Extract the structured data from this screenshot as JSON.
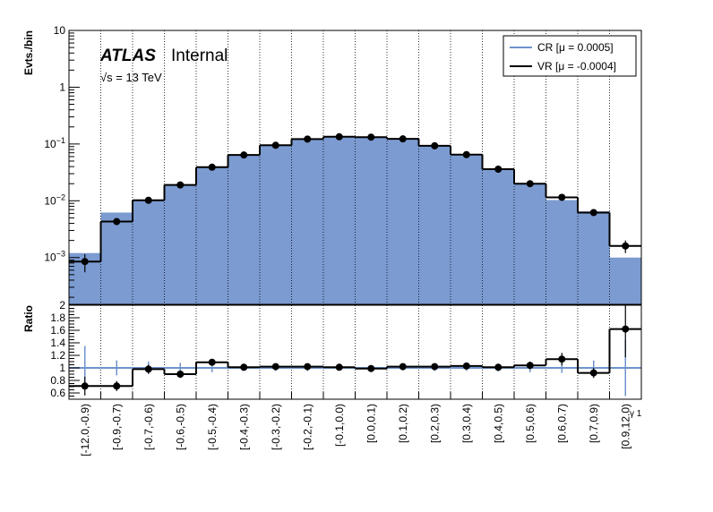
{
  "chart_data": {
    "type": "bar",
    "categories": [
      "[-12.0,-0.9)",
      "[-0.9,-0.7)",
      "[-0.7,-0.6)",
      "[-0.6,-0.5)",
      "[-0.5,-0.4)",
      "[-0.4,-0.3)",
      "[-0.3,-0.2)",
      "[-0.2,-0.1)",
      "[-0.1,0.0)",
      "[0.0,0.1)",
      "[0.1,0.2)",
      "[0.2,0.3)",
      "[0.3,0.4)",
      "[0.4,0.5)",
      "[0.5,0.6)",
      "[0.6,0.7)",
      "[0.7,0.9)",
      "[0.9,12.0)"
    ],
    "x_title": "γ 1",
    "upper": {
      "ylabel": "Evts./bin",
      "yscale": "log",
      "ylim": [
        0.00015,
        10
      ],
      "y_ticks": [
        {
          "value": 10,
          "label": "10"
        },
        {
          "value": 1,
          "label": "1"
        },
        {
          "value": 0.1,
          "base": "10",
          "exp": "−1"
        },
        {
          "value": 0.01,
          "base": "10",
          "exp": "−2"
        },
        {
          "value": 0.001,
          "base": "10",
          "exp": "−3"
        }
      ],
      "series": [
        {
          "name": "CR [μ = 0.0005]",
          "style": "filled-histogram",
          "color": "#7b9bd1",
          "values": [
            0.0012,
            0.0062,
            0.0105,
            0.019,
            0.038,
            0.063,
            0.094,
            0.12,
            0.132,
            0.133,
            0.121,
            0.092,
            0.063,
            0.036,
            0.0195,
            0.0103,
            0.0065,
            0.001
          ]
        },
        {
          "name": "VR [μ = -0.0004]",
          "style": "points-with-step",
          "color": "#000000",
          "values": [
            0.00085,
            0.0043,
            0.0102,
            0.019,
            0.039,
            0.064,
            0.095,
            0.122,
            0.134,
            0.132,
            0.123,
            0.093,
            0.065,
            0.036,
            0.02,
            0.0115,
            0.0062,
            0.0016
          ],
          "errors_low": [
            0.0003,
            0.0005,
            0.0007,
            0.0012,
            0.002,
            0.003,
            0.003,
            0.004,
            0.004,
            0.004,
            0.004,
            0.003,
            0.003,
            0.002,
            0.0015,
            0.001,
            0.0007,
            0.0004
          ],
          "errors_high": [
            0.0003,
            0.0005,
            0.0007,
            0.0012,
            0.002,
            0.003,
            0.003,
            0.004,
            0.004,
            0.004,
            0.004,
            0.003,
            0.003,
            0.002,
            0.0015,
            0.001,
            0.0007,
            0.0004
          ]
        }
      ]
    },
    "lower": {
      "ylabel": "Ratio",
      "ylim": [
        0.5,
        2.0
      ],
      "y_ticks": [
        "0.6",
        "0.8",
        "1",
        "1.2",
        "1.4",
        "1.6",
        "1.8",
        "2"
      ],
      "reference_value": 1,
      "reference_errors": [
        0.35,
        0.12,
        0.1,
        0.08,
        0.07,
        0.05,
        0.05,
        0.05,
        0.04,
        0.04,
        0.04,
        0.05,
        0.05,
        0.06,
        0.07,
        0.08,
        0.12,
        0.45
      ],
      "ratio_values": [
        0.71,
        0.71,
        0.98,
        0.9,
        1.09,
        1.01,
        1.02,
        1.02,
        1.01,
        0.99,
        1.02,
        1.02,
        1.03,
        1.01,
        1.04,
        1.14,
        0.92,
        1.62
      ],
      "ratio_errors": [
        0.15,
        0.08,
        0.07,
        0.06,
        0.05,
        0.04,
        0.03,
        0.03,
        0.03,
        0.03,
        0.03,
        0.03,
        0.04,
        0.04,
        0.06,
        0.1,
        0.08,
        0.45
      ]
    },
    "legend_position": "top-right",
    "grid": "vertical-dotted"
  },
  "annotations": {
    "atlas": "ATLAS",
    "internal": "Internal",
    "sqrt": "√s",
    "energy": " = 13 TeV"
  },
  "colors": {
    "cr_fill": "#7b9bd1",
    "cr_line": "#6f93cc",
    "vr": "#000000"
  }
}
